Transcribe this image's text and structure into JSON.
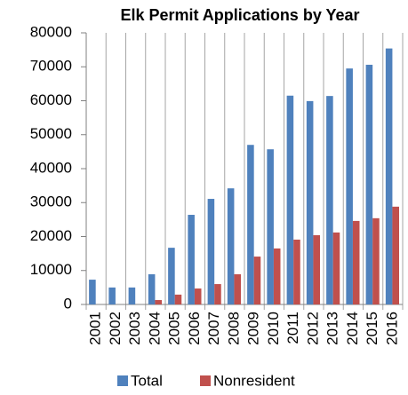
{
  "chart_data": {
    "type": "bar",
    "title": "Elk Permit Applications by Year",
    "categories": [
      "2001",
      "2002",
      "2003",
      "2004",
      "2005",
      "2006",
      "2007",
      "2008",
      "2009",
      "2010",
      "2011",
      "2012",
      "2013",
      "2014",
      "2015",
      "2016"
    ],
    "series": [
      {
        "name": "Total",
        "color": "#4f81bd",
        "values": [
          7300,
          5000,
          5000,
          8900,
          16700,
          26400,
          31100,
          34200,
          47000,
          45700,
          61500,
          59900,
          61400,
          69500,
          70600,
          75400
        ]
      },
      {
        "name": "Nonresident",
        "color": "#c0504d",
        "values": [
          0,
          0,
          0,
          1300,
          2900,
          4700,
          6000,
          8900,
          14100,
          16500,
          19100,
          20400,
          21200,
          24600,
          25400,
          28800
        ]
      }
    ],
    "ylim": [
      0,
      80000
    ],
    "yticks": [
      0,
      10000,
      20000,
      30000,
      40000,
      50000,
      60000,
      70000,
      80000
    ]
  }
}
